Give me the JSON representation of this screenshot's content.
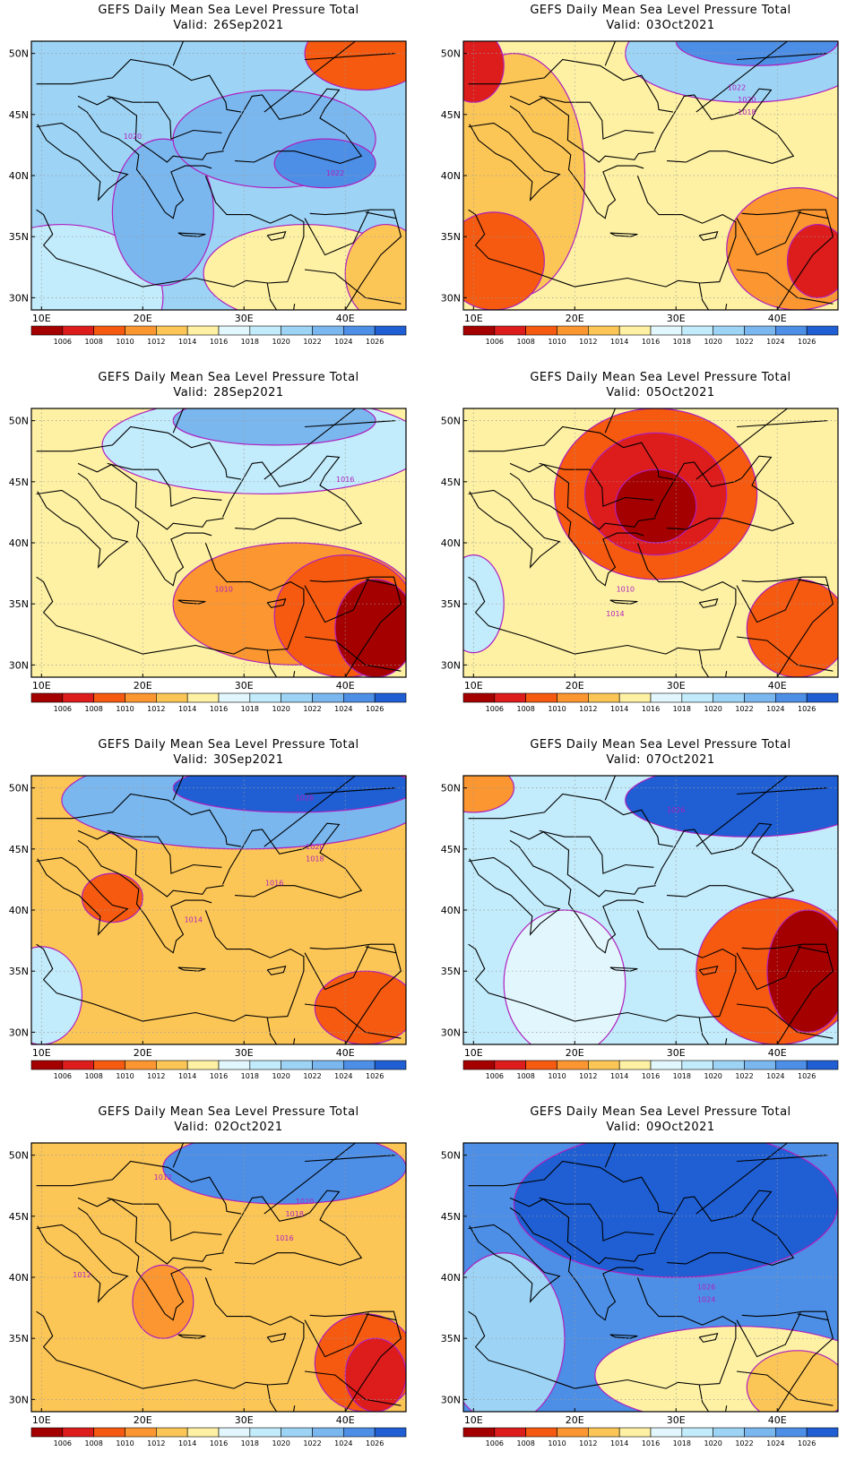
{
  "title": "GEFS Daily Mean Sea Level Pressure Total",
  "valid_label": "Valid:",
  "map": {
    "x_ticks": [
      "10E",
      "20E",
      "30E",
      "40E"
    ],
    "y_ticks": [
      "50N",
      "45N",
      "40N",
      "35N",
      "30N"
    ],
    "lon_range": [
      9,
      46
    ],
    "lat_range": [
      29,
      51
    ]
  },
  "colorbar": {
    "labels": [
      "1006",
      "1008",
      "1010",
      "1012",
      "1014",
      "1016",
      "1018",
      "1020",
      "1022",
      "1024",
      "1026"
    ],
    "colors": [
      "#a50000",
      "#dd1c1c",
      "#f55a10",
      "#fb9630",
      "#fcc657",
      "#fef1a4",
      "#e2f7fd",
      "#c2ebfb",
      "#9dd4f6",
      "#7ab7ef",
      "#4d8fe6",
      "#1f5fd3"
    ]
  },
  "line_color": "#b01fbf",
  "panels": [
    {
      "valid": "26Sep2021",
      "bg_level": 8,
      "blobs": [
        {
          "lon": 12,
          "lat": 30,
          "rx": 10,
          "ry": 6,
          "level": 7
        },
        {
          "lon": 36,
          "lat": 32,
          "rx": 10,
          "ry": 4,
          "level": 5
        },
        {
          "lon": 44,
          "lat": 32,
          "rx": 4,
          "ry": 4,
          "level": 4
        },
        {
          "lon": 22,
          "lat": 37,
          "rx": 5,
          "ry": 6,
          "level": 9
        },
        {
          "lon": 33,
          "lat": 43,
          "rx": 10,
          "ry": 4,
          "level": 9
        },
        {
          "lon": 38,
          "lat": 41,
          "rx": 5,
          "ry": 2,
          "level": 10
        },
        {
          "lon": 42,
          "lat": 50,
          "rx": 6,
          "ry": 3,
          "level": 2
        }
      ],
      "contour_labels": [
        {
          "text": "1020",
          "lon": 19,
          "lat": 43
        },
        {
          "text": "1022",
          "lon": 39,
          "lat": 40
        }
      ]
    },
    {
      "valid": "03Oct2021",
      "bg_level": 5,
      "blobs": [
        {
          "lon": 14,
          "lat": 40,
          "rx": 7,
          "ry": 10,
          "level": 4
        },
        {
          "lon": 12,
          "lat": 33,
          "rx": 5,
          "ry": 4,
          "level": 2
        },
        {
          "lon": 42,
          "lat": 34,
          "rx": 7,
          "ry": 5,
          "level": 3
        },
        {
          "lon": 44,
          "lat": 33,
          "rx": 3,
          "ry": 3,
          "level": 1
        },
        {
          "lon": 10,
          "lat": 49,
          "rx": 3,
          "ry": 3,
          "level": 1
        },
        {
          "lon": 37,
          "lat": 50,
          "rx": 12,
          "ry": 4,
          "level": 8
        },
        {
          "lon": 38,
          "lat": 51,
          "rx": 8,
          "ry": 2,
          "level": 10
        }
      ],
      "contour_labels": [
        {
          "text": "1022",
          "lon": 36,
          "lat": 47
        },
        {
          "text": "1020",
          "lon": 37,
          "lat": 46
        },
        {
          "text": "1018",
          "lon": 37,
          "lat": 45
        }
      ]
    },
    {
      "valid": "28Sep2021",
      "bg_level": 5,
      "blobs": [
        {
          "lon": 35,
          "lat": 35,
          "rx": 12,
          "ry": 5,
          "level": 3
        },
        {
          "lon": 40,
          "lat": 34,
          "rx": 7,
          "ry": 5,
          "level": 2
        },
        {
          "lon": 43,
          "lat": 33,
          "rx": 4,
          "ry": 4,
          "level": 0
        },
        {
          "lon": 32,
          "lat": 48,
          "rx": 16,
          "ry": 4,
          "level": 7
        },
        {
          "lon": 33,
          "lat": 50,
          "rx": 10,
          "ry": 2,
          "level": 9
        }
      ],
      "contour_labels": [
        {
          "text": "1016",
          "lon": 40,
          "lat": 45
        },
        {
          "text": "1010",
          "lon": 28,
          "lat": 36
        }
      ]
    },
    {
      "valid": "05Oct2021",
      "bg_level": 5,
      "blobs": [
        {
          "lon": 28,
          "lat": 44,
          "rx": 10,
          "ry": 7,
          "level": 2
        },
        {
          "lon": 28,
          "lat": 44,
          "rx": 7,
          "ry": 5,
          "level": 1
        },
        {
          "lon": 28,
          "lat": 43,
          "rx": 4,
          "ry": 3,
          "level": 0
        },
        {
          "lon": 42,
          "lat": 33,
          "rx": 5,
          "ry": 4,
          "level": 2
        },
        {
          "lon": 10,
          "lat": 35,
          "rx": 3,
          "ry": 4,
          "level": 7
        }
      ],
      "contour_labels": [
        {
          "text": "1014",
          "lon": 24,
          "lat": 34
        },
        {
          "text": "1010",
          "lon": 25,
          "lat": 36
        }
      ]
    },
    {
      "valid": "30Sep2021",
      "bg_level": 4,
      "blobs": [
        {
          "lon": 30,
          "lat": 49,
          "rx": 18,
          "ry": 4,
          "level": 9
        },
        {
          "lon": 35,
          "lat": 50,
          "rx": 12,
          "ry": 2,
          "level": 11
        },
        {
          "lon": 17,
          "lat": 41,
          "rx": 3,
          "ry": 2,
          "level": 2
        },
        {
          "lon": 42,
          "lat": 32,
          "rx": 5,
          "ry": 3,
          "level": 2
        },
        {
          "lon": 10,
          "lat": 33,
          "rx": 4,
          "ry": 4,
          "level": 7
        }
      ],
      "contour_labels": [
        {
          "text": "1020",
          "lon": 37,
          "lat": 45
        },
        {
          "text": "1018",
          "lon": 37,
          "lat": 44
        },
        {
          "text": "1016",
          "lon": 33,
          "lat": 42
        },
        {
          "text": "1026",
          "lon": 36,
          "lat": 49
        },
        {
          "text": "1014",
          "lon": 25,
          "lat": 39
        }
      ]
    },
    {
      "valid": "07Oct2021",
      "bg_level": 7,
      "blobs": [
        {
          "lon": 19,
          "lat": 34,
          "rx": 6,
          "ry": 6,
          "level": 6
        },
        {
          "lon": 37,
          "lat": 49,
          "rx": 12,
          "ry": 3,
          "level": 11
        },
        {
          "lon": 40,
          "lat": 35,
          "rx": 8,
          "ry": 6,
          "level": 2
        },
        {
          "lon": 43,
          "lat": 35,
          "rx": 4,
          "ry": 5,
          "level": 0
        },
        {
          "lon": 10,
          "lat": 50,
          "rx": 4,
          "ry": 2,
          "level": 3
        }
      ],
      "contour_labels": [
        {
          "text": "1026",
          "lon": 30,
          "lat": 48
        }
      ]
    },
    {
      "valid": "02Oct2021",
      "bg_level": 4,
      "blobs": [
        {
          "lon": 34,
          "lat": 49,
          "rx": 12,
          "ry": 3,
          "level": 10
        },
        {
          "lon": 42,
          "lat": 33,
          "rx": 5,
          "ry": 4,
          "level": 2
        },
        {
          "lon": 43,
          "lat": 32,
          "rx": 3,
          "ry": 3,
          "level": 1
        },
        {
          "lon": 22,
          "lat": 38,
          "rx": 3,
          "ry": 3,
          "level": 3
        }
      ],
      "contour_labels": [
        {
          "text": "1012",
          "lon": 22,
          "lat": 48
        },
        {
          "text": "1020",
          "lon": 36,
          "lat": 46
        },
        {
          "text": "1018",
          "lon": 35,
          "lat": 45
        },
        {
          "text": "1016",
          "lon": 34,
          "lat": 43
        },
        {
          "text": "1012",
          "lon": 14,
          "lat": 40
        }
      ]
    },
    {
      "valid": "09Oct2021",
      "bg_level": 10,
      "blobs": [
        {
          "lon": 30,
          "lat": 46,
          "rx": 16,
          "ry": 6,
          "level": 11
        },
        {
          "lon": 13,
          "lat": 35,
          "rx": 6,
          "ry": 7,
          "level": 8
        },
        {
          "lon": 36,
          "lat": 32,
          "rx": 14,
          "ry": 4,
          "level": 5
        },
        {
          "lon": 42,
          "lat": 31,
          "rx": 5,
          "ry": 3,
          "level": 4
        }
      ],
      "contour_labels": [
        {
          "text": "1026",
          "lon": 33,
          "lat": 39
        },
        {
          "text": "1024",
          "lon": 33,
          "lat": 38
        }
      ]
    }
  ]
}
